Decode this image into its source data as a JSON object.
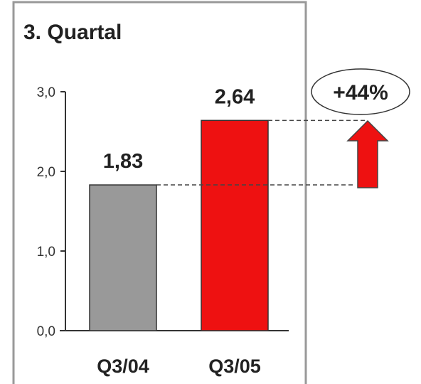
{
  "chart_data": {
    "type": "bar",
    "title": "3. Quartal",
    "categories": [
      "Q3/04",
      "Q3/05"
    ],
    "values": [
      1.83,
      2.64
    ],
    "value_labels": [
      "1,83",
      "2,64"
    ],
    "ylim": [
      0,
      3.0
    ],
    "yticks": [
      0.0,
      1.0,
      2.0,
      3.0
    ],
    "ytick_labels": [
      "0,0",
      "1,0",
      "2,0",
      "3,0"
    ],
    "xlabel": "",
    "ylabel": "",
    "grid": false,
    "bar_colors": [
      "#999999",
      "#ee1111"
    ],
    "annotation": {
      "text": "+44%",
      "arrow_color": "#ee1111",
      "arrow_direction": "up"
    }
  },
  "colors": {
    "frame": "#999999",
    "axis": "#333333",
    "reference_lines": "#444444"
  }
}
